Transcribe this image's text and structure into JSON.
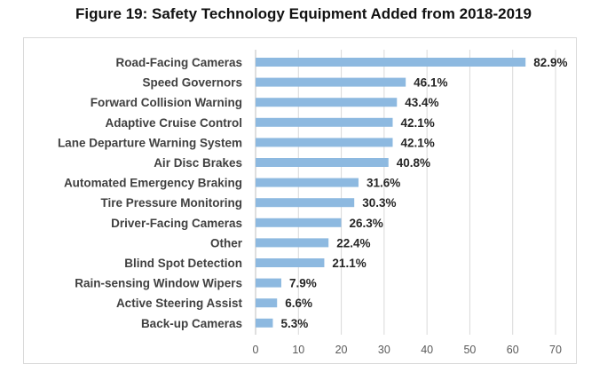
{
  "chart_data": {
    "type": "bar",
    "orientation": "horizontal",
    "title": "Figure 19: Safety Technology Equipment Added from 2018-2019",
    "xlabel": "",
    "ylabel": "",
    "categories": [
      "Road-Facing Cameras",
      "Speed Governors",
      "Forward Collision Warning",
      "Adaptive Cruise Control",
      "Lane Departure Warning System",
      "Air Disc Brakes",
      "Automated Emergency Braking",
      "Tire Pressure Monitoring",
      "Driver-Facing Cameras",
      "Other",
      "Blind Spot Detection",
      "Rain-sensing Window Wipers",
      "Active Steering Assist",
      "Back-up Cameras"
    ],
    "values": [
      82.9,
      46.1,
      43.4,
      42.1,
      42.1,
      40.8,
      31.6,
      30.3,
      26.3,
      22.4,
      21.1,
      7.9,
      6.6,
      5.3
    ],
    "data_labels": [
      "82.9%",
      "46.1%",
      "43.4%",
      "42.1%",
      "42.1%",
      "40.8%",
      "31.6%",
      "30.3%",
      "26.3%",
      "22.4%",
      "21.1%",
      "7.9%",
      "6.6%",
      "5.3%"
    ],
    "drawn_bar_scale": 0.76,
    "xlim": [
      0,
      70
    ],
    "xticks": [
      0,
      10,
      20,
      30,
      40,
      50,
      60,
      70
    ],
    "xtick_labels": [
      "0",
      "10",
      "20",
      "30",
      "40",
      "50",
      "60",
      "70"
    ],
    "grid": true,
    "legend": "none",
    "bar_color": "#8db9e0",
    "grid_color": "#d9d9d9"
  }
}
